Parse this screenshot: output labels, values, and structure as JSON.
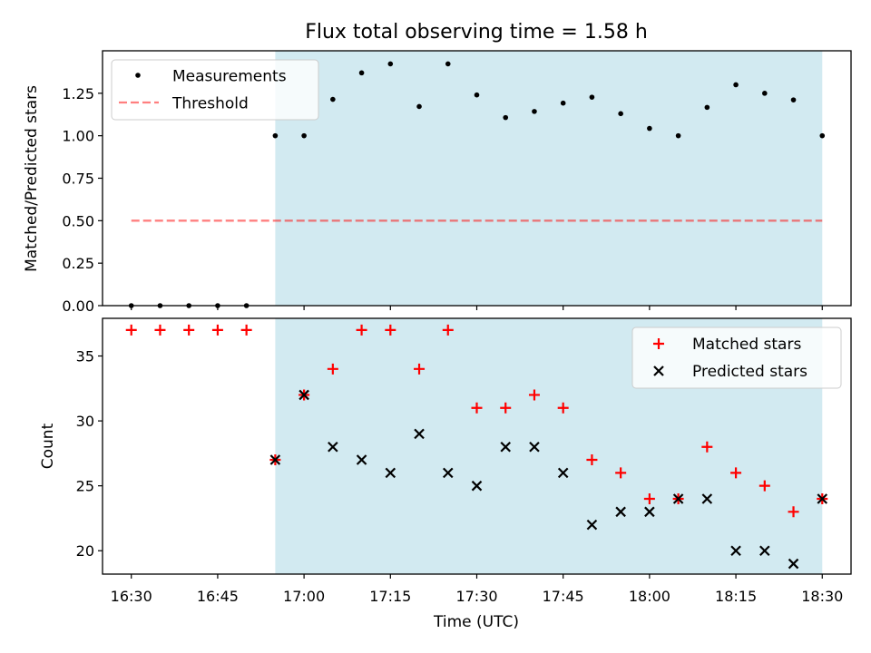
{
  "figure_title": "Flux total observing time = 1.58 h",
  "colors": {
    "shade": "#add8e6",
    "threshold": "#ff0000",
    "matched": "#ff0000",
    "predicted": "#000000",
    "measurement": "#000000"
  },
  "chart_data": [
    {
      "type": "scatter",
      "title": "",
      "xlabel": "",
      "ylabel": "Matched/Predicted stars",
      "xlim": [
        "16:25",
        "18:35"
      ],
      "ylim": [
        0,
        1.5
      ],
      "y_ticks": [
        "0.00",
        "0.25",
        "0.50",
        "0.75",
        "1.00",
        "1.25"
      ],
      "shaded_x_range": [
        "16:55",
        "18:30"
      ],
      "legend_position": "top-left",
      "series": [
        {
          "name": "Measurements",
          "marker": "dot",
          "x": [
            "16:30",
            "16:35",
            "16:40",
            "16:45",
            "16:50",
            "16:55",
            "17:00",
            "17:05",
            "17:10",
            "17:15",
            "17:20",
            "17:25",
            "17:30",
            "17:35",
            "17:40",
            "17:45",
            "17:50",
            "17:55",
            "18:00",
            "18:05",
            "18:10",
            "18:15",
            "18:20",
            "18:25",
            "18:30"
          ],
          "y": [
            0,
            0,
            0,
            0,
            0,
            1.0,
            1.0,
            1.214,
            1.37,
            1.423,
            1.172,
            1.423,
            1.24,
            1.107,
            1.143,
            1.192,
            1.227,
            1.13,
            1.043,
            1.0,
            1.167,
            1.3,
            1.25,
            1.211,
            1.0
          ]
        },
        {
          "name": "Threshold",
          "style": "dashed-line",
          "x": [
            "16:30",
            "18:30"
          ],
          "y": [
            0.5,
            0.5
          ]
        }
      ]
    },
    {
      "type": "scatter",
      "title": "",
      "xlabel": "Time (UTC)",
      "ylabel": "Count",
      "xlim": [
        "16:25",
        "18:35"
      ],
      "ylim": [
        18.2,
        37.9
      ],
      "y_ticks": [
        "20",
        "25",
        "30",
        "35"
      ],
      "x_ticks": [
        "16:30",
        "16:45",
        "17:00",
        "17:15",
        "17:30",
        "17:45",
        "18:00",
        "18:15",
        "18:30"
      ],
      "shaded_x_range": [
        "16:55",
        "18:30"
      ],
      "legend_position": "top-right",
      "series": [
        {
          "name": "Matched stars",
          "marker": "plus",
          "x": [
            "16:30",
            "16:35",
            "16:40",
            "16:45",
            "16:50",
            "16:55",
            "17:00",
            "17:05",
            "17:10",
            "17:15",
            "17:20",
            "17:25",
            "17:30",
            "17:35",
            "17:40",
            "17:45",
            "17:50",
            "17:55",
            "18:00",
            "18:05",
            "18:10",
            "18:15",
            "18:20",
            "18:25",
            "18:30"
          ],
          "y": [
            37,
            37,
            37,
            37,
            37,
            27,
            32,
            34,
            37,
            37,
            34,
            37,
            31,
            31,
            32,
            31,
            27,
            26,
            24,
            24,
            28,
            26,
            25,
            23,
            24
          ]
        },
        {
          "name": "Predicted stars",
          "marker": "x",
          "x": [
            "16:55",
            "17:00",
            "17:05",
            "17:10",
            "17:15",
            "17:20",
            "17:25",
            "17:30",
            "17:35",
            "17:40",
            "17:45",
            "17:50",
            "17:55",
            "18:00",
            "18:05",
            "18:10",
            "18:15",
            "18:20",
            "18:25",
            "18:30"
          ],
          "y": [
            27,
            32,
            28,
            27,
            26,
            29,
            26,
            25,
            28,
            28,
            26,
            22,
            23,
            23,
            24,
            24,
            20,
            20,
            19,
            24
          ]
        }
      ]
    }
  ]
}
